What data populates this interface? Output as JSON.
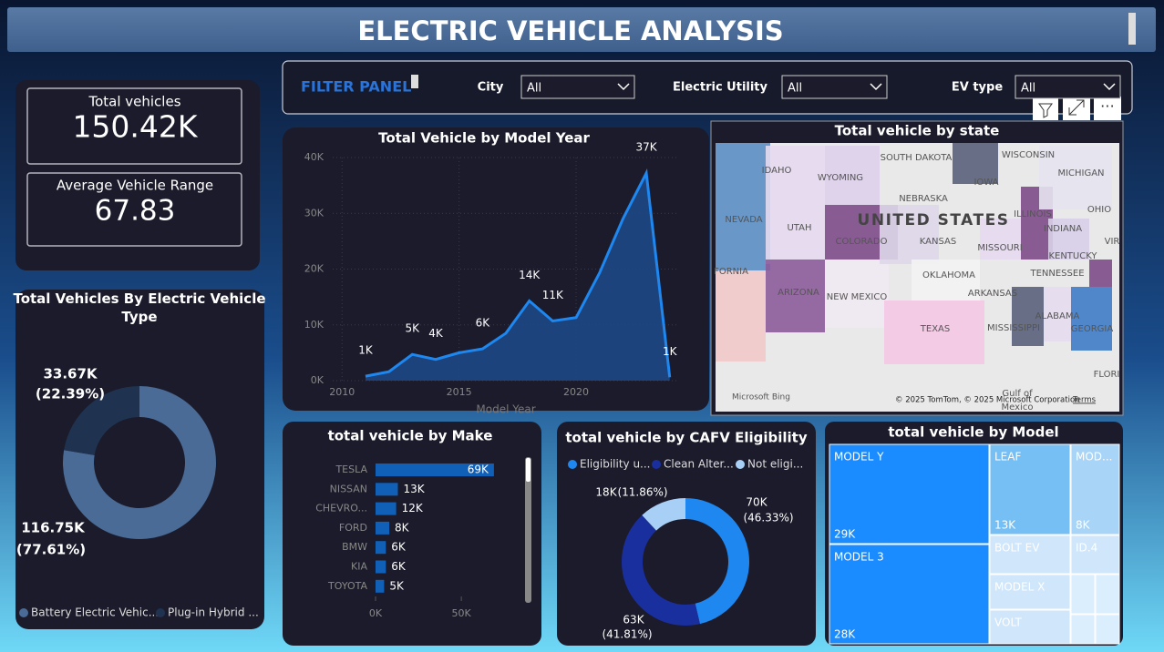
{
  "header": {
    "title": "ELECTRIC VEHICLE ANALYSIS"
  },
  "kpis": [
    {
      "label": "Total vehicles",
      "value": "150.42K"
    },
    {
      "label": "Average Vehicle Range",
      "value": "67.83"
    }
  ],
  "filters": {
    "title": "FILTER PANEL",
    "items": [
      {
        "label": "City",
        "value": "All"
      },
      {
        "label": "Electric Utility",
        "value": "All"
      },
      {
        "label": "EV type",
        "value": "All"
      }
    ]
  },
  "chart_data": [
    {
      "type": "area",
      "title": "Total Vehicle by Model Year",
      "x_label": "Model Year",
      "color": "#1e88f0",
      "x": [
        2011,
        2012,
        2013,
        2014,
        2015,
        2016,
        2017,
        2018,
        2019,
        2020,
        2021,
        2022,
        2023,
        2024
      ],
      "values": [
        800,
        1600,
        4700,
        3800,
        5000,
        5700,
        8500,
        14300,
        10700,
        11300,
        19300,
        29000,
        37200,
        600
      ],
      "value_labels": [
        "1K",
        null,
        "5K",
        "4K",
        null,
        "6K",
        null,
        "14K",
        "11K",
        null,
        null,
        null,
        "37K",
        "1K"
      ],
      "xlim": [
        2009.6,
        2024.4
      ],
      "xticks": [
        2010,
        2015,
        2020
      ],
      "ylim": [
        0,
        40000
      ],
      "yticks": [
        {
          "value": 0,
          "label": "0K"
        },
        {
          "value": 10000,
          "label": "10K"
        },
        {
          "value": 20000,
          "label": "20K"
        },
        {
          "value": 30000,
          "label": "30K"
        },
        {
          "value": 40000,
          "label": "40K"
        }
      ],
      "grid": true
    },
    {
      "type": "donut",
      "title": "Total Vehicles By Electric Vehicle Type",
      "categories": [
        "Battery Electric Vehic...",
        "Plug-in Hybrid ..."
      ],
      "values": [
        116750,
        33670
      ],
      "value_labels": [
        "116.75K",
        "33.67K"
      ],
      "percent_labels": [
        "(77.61%)",
        "(22.39%)"
      ],
      "colors": [
        "#4a6b96",
        "#1f3350"
      ]
    },
    {
      "type": "hbar",
      "title": "total vehicle by Make",
      "color": "#1160b8",
      "categories": [
        "TESLA",
        "NISSAN",
        "CHEVRO...",
        "FORD",
        "BMW",
        "KIA",
        "TOYOTA"
      ],
      "values": [
        69000,
        13000,
        12000,
        8000,
        6000,
        6000,
        5000
      ],
      "value_labels": [
        "69K",
        "13K",
        "12K",
        "8K",
        "6K",
        "6K",
        "5K"
      ],
      "xlim": [
        0,
        85000
      ],
      "xticks": [
        {
          "value": 0,
          "label": "0K"
        },
        {
          "value": 50000,
          "label": "50K"
        }
      ]
    },
    {
      "type": "donut",
      "title": "total vehicle by CAFV Eligibility",
      "categories": [
        "Eligibility u...",
        "Clean Alter...",
        "Not eligi..."
      ],
      "values": [
        70000,
        63000,
        18000
      ],
      "value_labels": [
        "70K",
        "63K",
        "18K"
      ],
      "percent_labels": [
        "(46.33%)",
        "(41.81%)",
        "(11.86%)"
      ],
      "colors": [
        "#1e88f0",
        "#1a2f9e",
        "#a8d0f7"
      ]
    },
    {
      "type": "treemap",
      "title": "total vehicle by Model",
      "categories": [
        "MODEL Y",
        "MODEL 3",
        "LEAF",
        "MOD...",
        "BOLT EV",
        "ID.4",
        "MODEL X",
        "VOLT"
      ],
      "values": [
        29000,
        28000,
        13000,
        8000,
        5000,
        4000,
        5000,
        5000
      ],
      "value_labels": [
        "29K",
        "28K",
        "13K",
        "8K",
        null,
        null,
        null,
        null
      ],
      "colors": [
        "#1a8cff",
        "#1a8cff",
        "#76bff5",
        "#a8d4f7",
        "#cfe6fb",
        "#cfe6fb",
        "#cfe6fb",
        "#cfe6fb"
      ]
    }
  ],
  "map": {
    "title": "Total vehicle by state",
    "labels": [
      "SOUTH DAKOTA",
      "WISCONSIN",
      "MICHIGAN",
      "IDAHO",
      "WYOMING",
      "IOWA",
      "NEBRASKA",
      "NEVADA",
      "UTAH",
      "UNITED STATES",
      "ILLINOIS",
      "INDIANA",
      "OHIO",
      "COLORADO",
      "KANSAS",
      "MISSOURI",
      "KENTUCKY",
      "VIR",
      "TENNESSEE",
      "OKLAHOMA",
      "FORNIA",
      "ARKANSAS",
      "ARIZONA",
      "NEW MEXICO",
      "MISSISSIPPI",
      "ALABAMA",
      "GEORGIA",
      "TEXAS",
      "FLORI",
      "Gulf of",
      "Mexico"
    ],
    "logo": "Microsoft Bing",
    "attribution": "© 2025 TomTom, © 2025 Microsoft Corporation",
    "terms": "Terms"
  }
}
